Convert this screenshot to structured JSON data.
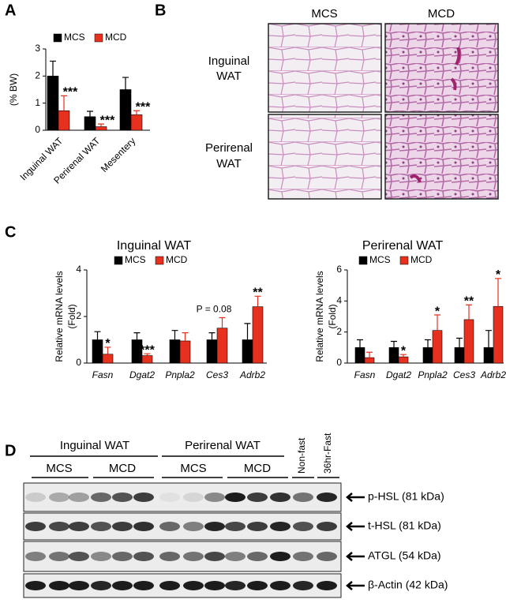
{
  "panels": [
    "A",
    "B",
    "C",
    "D"
  ],
  "chart_data": [
    {
      "type": "bar",
      "ylabel": [
        "(% BW)"
      ],
      "categories": [
        "Inguinal WAT",
        "Perirenal WAT",
        "Mesentery"
      ],
      "series": [
        {
          "name": "MCS",
          "color": "#000000",
          "values": [
            2.0,
            0.5,
            1.5
          ],
          "errors": [
            0.55,
            0.2,
            0.45
          ]
        },
        {
          "name": "MCD",
          "color": "#e8301e",
          "values": [
            0.72,
            0.13,
            0.57
          ],
          "errors": [
            0.55,
            0.1,
            0.15
          ]
        }
      ],
      "annotations": [
        "***",
        "***",
        "***"
      ],
      "ylim": [
        0,
        3
      ],
      "yticks": [
        0,
        1,
        2,
        3
      ]
    },
    {
      "type": "bar",
      "title": "Inguinal WAT",
      "ylabel": [
        "Relative mRNA levels",
        "(Fold)"
      ],
      "categories": [
        "Fasn",
        "Dgat2",
        "Pnpla2",
        "Ces3",
        "Adrb2"
      ],
      "series": [
        {
          "name": "MCS",
          "color": "#000000",
          "values": [
            1,
            1,
            1,
            1,
            1
          ],
          "errors": [
            0.35,
            0.3,
            0.4,
            0.3,
            0.7
          ]
        },
        {
          "name": "MCD",
          "color": "#e8301e",
          "values": [
            0.38,
            0.32,
            0.95,
            1.5,
            2.42
          ],
          "errors": [
            0.3,
            0.08,
            0.35,
            0.45,
            0.45
          ]
        }
      ],
      "annotations": [
        "*",
        "***",
        null,
        "P = 0.08",
        "**"
      ],
      "ylim": [
        0,
        4
      ],
      "yticks": [
        0,
        2,
        4
      ]
    },
    {
      "type": "bar",
      "title": "Perirenal WAT",
      "ylabel": [
        "Relative mRNA levels",
        "(Fold)"
      ],
      "categories": [
        "Fasn",
        "Dgat2",
        "Pnpla2",
        "Ces3",
        "Adrb2"
      ],
      "series": [
        {
          "name": "MCS",
          "color": "#000000",
          "values": [
            1,
            1,
            1,
            1,
            1
          ],
          "errors": [
            0.5,
            0.4,
            0.5,
            0.6,
            1.1
          ]
        },
        {
          "name": "MCD",
          "color": "#e8301e",
          "values": [
            0.35,
            0.4,
            2.1,
            2.8,
            3.65
          ],
          "errors": [
            0.35,
            0.15,
            1.0,
            0.95,
            1.8
          ]
        }
      ],
      "annotations": [
        null,
        "*",
        "*",
        "**",
        "*"
      ],
      "ylim": [
        0,
        6
      ],
      "yticks": [
        0,
        2,
        4,
        6
      ]
    }
  ],
  "histology": {
    "columns": [
      "MCS",
      "MCD"
    ],
    "rows": [
      [
        "Inguinal",
        "WAT"
      ],
      [
        "Perirenal",
        "WAT"
      ]
    ]
  },
  "blot": {
    "groups": [
      "Inguinal WAT",
      "Perirenal WAT"
    ],
    "subgroups": [
      "MCS",
      "MCD",
      "MCS",
      "MCD"
    ],
    "lanes": [
      "Non-fast",
      "36hr-Fast"
    ],
    "rows": [
      "p-HSL (81 kDa)",
      "t-HSL (81 kDa)",
      "ATGL (54 kDa)",
      "β-Actin (42 kDa)"
    ]
  }
}
